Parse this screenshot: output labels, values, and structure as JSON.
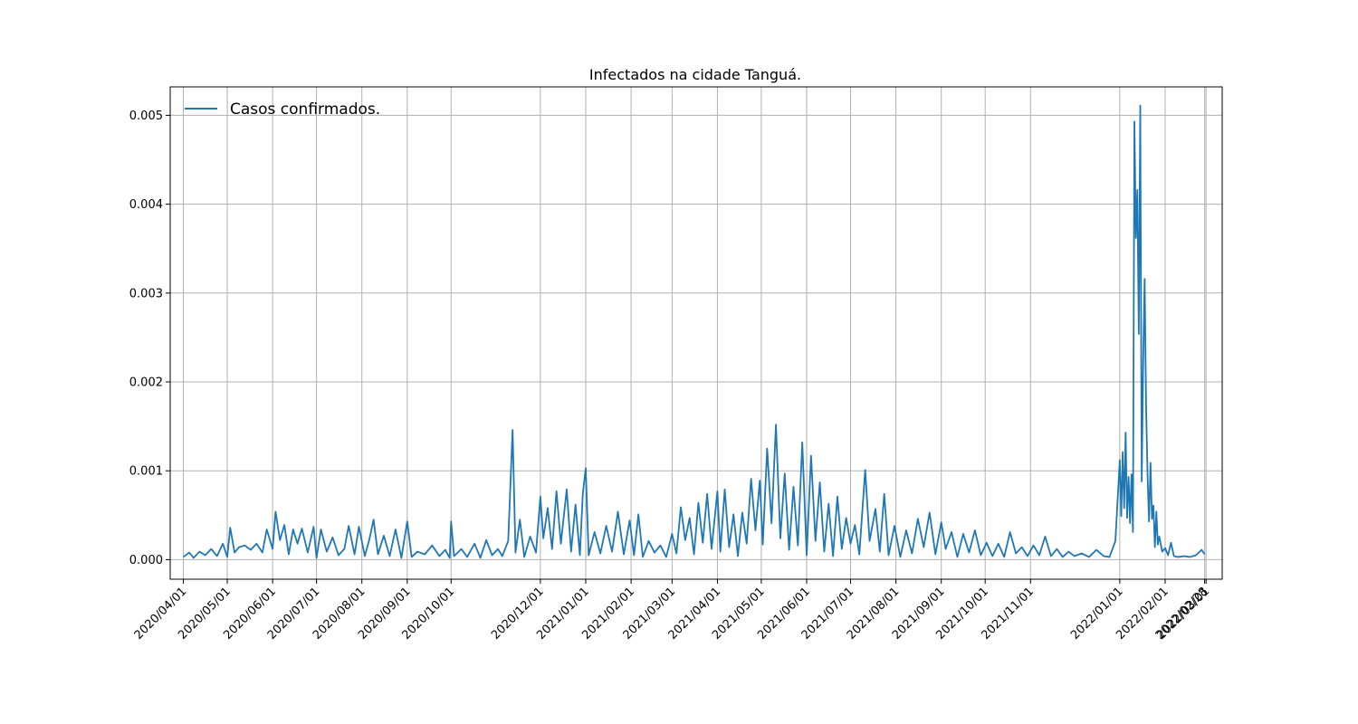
{
  "chart_data": {
    "type": "line",
    "title": "Infectados na cidade Tanguá.",
    "xlabel": "",
    "ylabel": "",
    "grid": true,
    "legend_position": "upper-left",
    "colors": {
      "series": "#1f77b4",
      "grid": "#b0b0b0"
    },
    "x_range": [
      "2020-03-23",
      "2022-03-12"
    ],
    "ylim": [
      -0.00022,
      0.00532
    ],
    "y_ticks": [
      {
        "value": 0.0,
        "label": "0.000"
      },
      {
        "value": 0.001,
        "label": "0.001"
      },
      {
        "value": 0.002,
        "label": "0.002"
      },
      {
        "value": 0.003,
        "label": "0.003"
      },
      {
        "value": 0.004,
        "label": "0.004"
      },
      {
        "value": 0.005,
        "label": "0.005"
      }
    ],
    "x_ticks": [
      {
        "date": "2020-04-01",
        "label": "2020/04/01"
      },
      {
        "date": "2020-05-01",
        "label": "2020/05/01"
      },
      {
        "date": "2020-06-01",
        "label": "2020/06/01"
      },
      {
        "date": "2020-07-01",
        "label": "2020/07/01"
      },
      {
        "date": "2020-08-01",
        "label": "2020/08/01"
      },
      {
        "date": "2020-09-01",
        "label": "2020/09/01"
      },
      {
        "date": "2020-10-01",
        "label": "2020/10/01"
      },
      {
        "date": "2020-12-01",
        "label": "2020/12/01"
      },
      {
        "date": "2021-01-01",
        "label": "2021/01/01"
      },
      {
        "date": "2021-02-01",
        "label": "2021/02/01"
      },
      {
        "date": "2021-03-01",
        "label": "2021/03/01"
      },
      {
        "date": "2021-04-01",
        "label": "2021/04/01"
      },
      {
        "date": "2021-05-01",
        "label": "2021/05/01"
      },
      {
        "date": "2021-06-01",
        "label": "2021/06/01"
      },
      {
        "date": "2021-07-01",
        "label": "2021/07/01"
      },
      {
        "date": "2021-08-01",
        "label": "2021/08/01"
      },
      {
        "date": "2021-09-01",
        "label": "2021/09/01"
      },
      {
        "date": "2021-10-01",
        "label": "2021/10/01"
      },
      {
        "date": "2021-11-01",
        "label": "2021/11/01"
      },
      {
        "date": "2022-01-01",
        "label": "2022/01/01"
      },
      {
        "date": "2022-02-01",
        "label": "2022/02/01"
      },
      {
        "date": "2022-02-28",
        "label": "2022/02/28"
      },
      {
        "date": "2022-03-01",
        "label": "2022/03/01"
      }
    ],
    "series": [
      {
        "name": "Casos confirmados.",
        "points": [
          [
            "2020-04-01",
            3e-05
          ],
          [
            "2020-04-05",
            8e-05
          ],
          [
            "2020-04-08",
            2e-05
          ],
          [
            "2020-04-12",
            9e-05
          ],
          [
            "2020-04-16",
            5e-05
          ],
          [
            "2020-04-20",
            0.00012
          ],
          [
            "2020-04-24",
            4e-05
          ],
          [
            "2020-04-28",
            0.00018
          ],
          [
            "2020-05-01",
            3e-05
          ],
          [
            "2020-05-03",
            0.00036
          ],
          [
            "2020-05-06",
            8e-05
          ],
          [
            "2020-05-09",
            0.00014
          ],
          [
            "2020-05-13",
            0.00016
          ],
          [
            "2020-05-17",
            0.00011
          ],
          [
            "2020-05-21",
            0.00018
          ],
          [
            "2020-05-25",
            8e-05
          ],
          [
            "2020-05-28",
            0.00034
          ],
          [
            "2020-06-01",
            0.00012
          ],
          [
            "2020-06-03",
            0.00054
          ],
          [
            "2020-06-06",
            0.00022
          ],
          [
            "2020-06-09",
            0.00039
          ],
          [
            "2020-06-12",
            6e-05
          ],
          [
            "2020-06-15",
            0.00034
          ],
          [
            "2020-06-18",
            0.00018
          ],
          [
            "2020-06-21",
            0.00035
          ],
          [
            "2020-06-25",
            8e-05
          ],
          [
            "2020-06-29",
            0.00037
          ],
          [
            "2020-07-01",
            2e-05
          ],
          [
            "2020-07-04",
            0.00034
          ],
          [
            "2020-07-08",
            9e-05
          ],
          [
            "2020-07-12",
            0.00025
          ],
          [
            "2020-07-16",
            5e-05
          ],
          [
            "2020-07-20",
            0.00012
          ],
          [
            "2020-07-23",
            0.00038
          ],
          [
            "2020-07-27",
            6e-05
          ],
          [
            "2020-07-30",
            0.00037
          ],
          [
            "2020-08-03",
            4e-05
          ],
          [
            "2020-08-06",
            0.00022
          ],
          [
            "2020-08-09",
            0.00045
          ],
          [
            "2020-08-12",
            6e-05
          ],
          [
            "2020-08-16",
            0.00027
          ],
          [
            "2020-08-20",
            4e-05
          ],
          [
            "2020-08-24",
            0.00034
          ],
          [
            "2020-08-28",
            2e-05
          ],
          [
            "2020-09-01",
            0.00043
          ],
          [
            "2020-09-04",
            3e-05
          ],
          [
            "2020-09-08",
            9e-05
          ],
          [
            "2020-09-13",
            6e-05
          ],
          [
            "2020-09-18",
            0.00016
          ],
          [
            "2020-09-23",
            4e-05
          ],
          [
            "2020-09-27",
            0.00011
          ],
          [
            "2020-09-30",
            2e-05
          ],
          [
            "2020-10-01",
            0.00043
          ],
          [
            "2020-10-03",
            4e-05
          ],
          [
            "2020-10-08",
            0.00012
          ],
          [
            "2020-10-12",
            3e-05
          ],
          [
            "2020-10-17",
            0.00018
          ],
          [
            "2020-10-21",
            2e-05
          ],
          [
            "2020-10-25",
            0.00022
          ],
          [
            "2020-10-29",
            5e-05
          ],
          [
            "2020-11-02",
            0.00012
          ],
          [
            "2020-11-05",
            4e-05
          ],
          [
            "2020-11-09",
            0.00021
          ],
          [
            "2020-11-12",
            0.00146
          ],
          [
            "2020-11-14",
            8e-05
          ],
          [
            "2020-11-17",
            0.00045
          ],
          [
            "2020-11-20",
            3e-05
          ],
          [
            "2020-11-24",
            0.00026
          ],
          [
            "2020-11-28",
            8e-05
          ],
          [
            "2020-12-01",
            0.00071
          ],
          [
            "2020-12-03",
            0.00024
          ],
          [
            "2020-12-06",
            0.00058
          ],
          [
            "2020-12-09",
            0.00012
          ],
          [
            "2020-12-12",
            0.00077
          ],
          [
            "2020-12-15",
            0.00018
          ],
          [
            "2020-12-19",
            0.00079
          ],
          [
            "2020-12-22",
            9e-05
          ],
          [
            "2020-12-25",
            0.00062
          ],
          [
            "2020-12-28",
            5e-05
          ],
          [
            "2020-12-30",
            0.00074
          ],
          [
            "2021-01-01",
            0.00103
          ],
          [
            "2021-01-03",
            5e-05
          ],
          [
            "2021-01-07",
            0.00031
          ],
          [
            "2021-01-11",
            7e-05
          ],
          [
            "2021-01-15",
            0.00038
          ],
          [
            "2021-01-19",
            9e-05
          ],
          [
            "2021-01-23",
            0.00054
          ],
          [
            "2021-01-27",
            6e-05
          ],
          [
            "2021-01-31",
            0.00044
          ],
          [
            "2021-02-03",
            5e-05
          ],
          [
            "2021-02-06",
            0.00051
          ],
          [
            "2021-02-09",
            3e-05
          ],
          [
            "2021-02-13",
            0.00021
          ],
          [
            "2021-02-17",
            8e-05
          ],
          [
            "2021-02-21",
            0.00016
          ],
          [
            "2021-02-25",
            3e-05
          ],
          [
            "2021-03-01",
            0.00029
          ],
          [
            "2021-03-04",
            7e-05
          ],
          [
            "2021-03-07",
            0.00059
          ],
          [
            "2021-03-10",
            0.00022
          ],
          [
            "2021-03-13",
            0.00047
          ],
          [
            "2021-03-16",
            6e-05
          ],
          [
            "2021-03-19",
            0.00064
          ],
          [
            "2021-03-22",
            0.00019
          ],
          [
            "2021-03-25",
            0.00074
          ],
          [
            "2021-03-28",
            0.00012
          ],
          [
            "2021-04-01",
            0.00077
          ],
          [
            "2021-04-03",
            9e-05
          ],
          [
            "2021-04-06",
            0.00079
          ],
          [
            "2021-04-09",
            0.00014
          ],
          [
            "2021-04-12",
            0.00051
          ],
          [
            "2021-04-15",
            4e-05
          ],
          [
            "2021-04-18",
            0.00053
          ],
          [
            "2021-04-21",
            0.00018
          ],
          [
            "2021-04-24",
            0.00091
          ],
          [
            "2021-04-27",
            0.00033
          ],
          [
            "2021-04-30",
            0.00089
          ],
          [
            "2021-05-02",
            0.00017
          ],
          [
            "2021-05-05",
            0.00125
          ],
          [
            "2021-05-08",
            0.00041
          ],
          [
            "2021-05-11",
            0.00152
          ],
          [
            "2021-05-14",
            0.00024
          ],
          [
            "2021-05-17",
            0.00097
          ],
          [
            "2021-05-20",
            0.00011
          ],
          [
            "2021-05-23",
            0.00082
          ],
          [
            "2021-05-26",
            0.00016
          ],
          [
            "2021-05-29",
            0.00132
          ],
          [
            "2021-06-01",
            5e-05
          ],
          [
            "2021-06-04",
            0.00117
          ],
          [
            "2021-06-07",
            0.00021
          ],
          [
            "2021-06-10",
            0.00087
          ],
          [
            "2021-06-13",
            9e-05
          ],
          [
            "2021-06-16",
            0.00063
          ],
          [
            "2021-06-19",
            4e-05
          ],
          [
            "2021-06-22",
            0.00071
          ],
          [
            "2021-06-25",
            0.00012
          ],
          [
            "2021-06-28",
            0.00047
          ],
          [
            "2021-07-01",
            0.00018
          ],
          [
            "2021-07-04",
            0.00039
          ],
          [
            "2021-07-07",
            6e-05
          ],
          [
            "2021-07-11",
            0.00101
          ],
          [
            "2021-07-14",
            0.00021
          ],
          [
            "2021-07-18",
            0.00057
          ],
          [
            "2021-07-21",
            9e-05
          ],
          [
            "2021-07-24",
            0.00074
          ],
          [
            "2021-07-27",
            5e-05
          ],
          [
            "2021-07-31",
            0.00038
          ],
          [
            "2021-08-04",
            3e-05
          ],
          [
            "2021-08-08",
            0.00033
          ],
          [
            "2021-08-12",
            7e-05
          ],
          [
            "2021-08-16",
            0.00046
          ],
          [
            "2021-08-20",
            0.00014
          ],
          [
            "2021-08-24",
            0.00053
          ],
          [
            "2021-08-28",
            6e-05
          ],
          [
            "2021-09-01",
            0.00042
          ],
          [
            "2021-09-04",
            0.00012
          ],
          [
            "2021-09-08",
            0.00031
          ],
          [
            "2021-09-12",
            3e-05
          ],
          [
            "2021-09-16",
            0.00029
          ],
          [
            "2021-09-20",
            8e-05
          ],
          [
            "2021-09-24",
            0.00033
          ],
          [
            "2021-09-28",
            5e-05
          ],
          [
            "2021-10-02",
            0.00019
          ],
          [
            "2021-10-06",
            4e-05
          ],
          [
            "2021-10-10",
            0.00018
          ],
          [
            "2021-10-14",
            3e-05
          ],
          [
            "2021-10-18",
            0.00031
          ],
          [
            "2021-10-22",
            7e-05
          ],
          [
            "2021-10-26",
            0.00014
          ],
          [
            "2021-10-30",
            4e-05
          ],
          [
            "2021-11-03",
            0.00016
          ],
          [
            "2021-11-07",
            5e-05
          ],
          [
            "2021-11-11",
            0.00026
          ],
          [
            "2021-11-15",
            4e-05
          ],
          [
            "2021-11-19",
            0.00012
          ],
          [
            "2021-11-23",
            3e-05
          ],
          [
            "2021-11-27",
            9e-05
          ],
          [
            "2021-12-01",
            4e-05
          ],
          [
            "2021-12-06",
            7e-05
          ],
          [
            "2021-12-11",
            3e-05
          ],
          [
            "2021-12-16",
            0.00011
          ],
          [
            "2021-12-21",
            4e-05
          ],
          [
            "2021-12-25",
            3e-05
          ],
          [
            "2021-12-29",
            0.00021
          ],
          [
            "2022-01-01",
            0.00112
          ],
          [
            "2022-01-02",
            0.00049
          ],
          [
            "2022-01-03",
            0.00121
          ],
          [
            "2022-01-04",
            0.00058
          ],
          [
            "2022-01-05",
            0.00143
          ],
          [
            "2022-01-06",
            0.00047
          ],
          [
            "2022-01-07",
            0.00093
          ],
          [
            "2022-01-08",
            0.00041
          ],
          [
            "2022-01-09",
            0.00096
          ],
          [
            "2022-01-10",
            0.00031
          ],
          [
            "2022-01-11",
            0.00493
          ],
          [
            "2022-01-12",
            0.00362
          ],
          [
            "2022-01-13",
            0.00416
          ],
          [
            "2022-01-14",
            0.00254
          ],
          [
            "2022-01-15",
            0.00511
          ],
          [
            "2022-01-16",
            0.00088
          ],
          [
            "2022-01-17",
            0.00224
          ],
          [
            "2022-01-18",
            0.00316
          ],
          [
            "2022-01-19",
            0.00171
          ],
          [
            "2022-01-20",
            0.00094
          ],
          [
            "2022-01-21",
            0.00043
          ],
          [
            "2022-01-22",
            0.00109
          ],
          [
            "2022-01-23",
            0.00046
          ],
          [
            "2022-01-24",
            0.00061
          ],
          [
            "2022-01-25",
            0.00014
          ],
          [
            "2022-01-26",
            0.00054
          ],
          [
            "2022-01-27",
            0.00017
          ],
          [
            "2022-01-28",
            0.00026
          ],
          [
            "2022-01-30",
            9e-05
          ],
          [
            "2022-02-01",
            0.00013
          ],
          [
            "2022-02-03",
            5e-05
          ],
          [
            "2022-02-05",
            0.00019
          ],
          [
            "2022-02-07",
            4e-05
          ],
          [
            "2022-02-10",
            3e-05
          ],
          [
            "2022-02-14",
            4e-05
          ],
          [
            "2022-02-18",
            3e-05
          ],
          [
            "2022-02-22",
            5e-05
          ],
          [
            "2022-02-26",
            0.00011
          ],
          [
            "2022-02-28",
            6e-05
          ]
        ]
      }
    ]
  }
}
